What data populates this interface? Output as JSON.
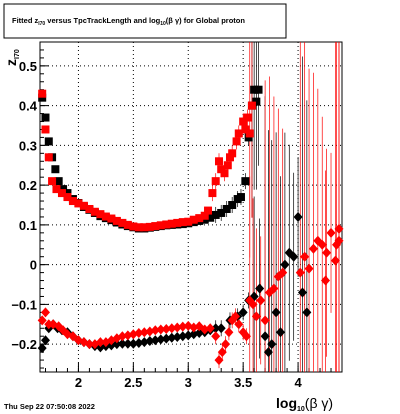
{
  "chart_data": {
    "type": "scatter",
    "title": {
      "prefix": "Fitted  z",
      "sub1": "I70",
      "middle": "  versus TpcTrackLength and log",
      "sub2": "10",
      "suffix": "(β  γ) for Global proton"
    },
    "ylabel": {
      "main": "z",
      "sub": "I70"
    },
    "xlabel": {
      "main": "log",
      "sub": "10",
      "suffix": "(β γ)"
    },
    "timestamp": "Thu Sep 22 07:50:08 2022",
    "xlim": [
      1.65,
      4.4
    ],
    "ylim": [
      -0.27,
      0.56
    ],
    "x_ticks": [
      2,
      2.5,
      3,
      3.5,
      4
    ],
    "x_tick_labels": [
      "2",
      "2.5",
      "3",
      "3.5",
      "4"
    ],
    "y_ticks": [
      -0.2,
      -0.1,
      0,
      0.1,
      0.2,
      0.3,
      0.4,
      0.5
    ],
    "y_tick_labels": [
      "−0.2",
      "−0.1",
      "0",
      "0.1",
      "0.2",
      "0.3",
      "0.4",
      "0.5"
    ],
    "grid": true,
    "colors": {
      "series_black": "#000000",
      "series_red": "#ff0000",
      "axis": "#000000"
    },
    "series": [
      {
        "color": "black",
        "marker": "square",
        "points": [
          [
            1.67,
            0.42
          ],
          [
            1.7,
            0.37
          ],
          [
            1.73,
            0.31
          ],
          [
            1.76,
            0.27
          ],
          [
            1.79,
            0.24
          ],
          [
            1.82,
            0.21
          ],
          [
            1.86,
            0.19
          ],
          [
            1.9,
            0.18
          ],
          [
            1.95,
            0.165
          ],
          [
            2.0,
            0.155
          ],
          [
            2.05,
            0.145
          ],
          [
            2.1,
            0.138
          ],
          [
            2.15,
            0.13
          ],
          [
            2.2,
            0.122
          ],
          [
            2.25,
            0.117
          ],
          [
            2.3,
            0.112
          ],
          [
            2.35,
            0.106
          ],
          [
            2.4,
            0.101
          ],
          [
            2.45,
            0.097
          ],
          [
            2.5,
            0.094
          ],
          [
            2.55,
            0.091
          ],
          [
            2.6,
            0.091
          ],
          [
            2.65,
            0.093
          ],
          [
            2.7,
            0.095
          ],
          [
            2.75,
            0.097
          ],
          [
            2.8,
            0.099
          ],
          [
            2.85,
            0.1
          ],
          [
            2.9,
            0.101
          ],
          [
            2.95,
            0.102
          ],
          [
            3.0,
            0.104
          ],
          [
            3.05,
            0.107
          ],
          [
            3.1,
            0.11
          ],
          [
            3.15,
            0.113
          ],
          [
            3.2,
            0.118
          ],
          [
            3.25,
            0.125
          ],
          [
            3.3,
            0.13
          ],
          [
            3.35,
            0.14
          ],
          [
            3.4,
            0.15
          ],
          [
            3.45,
            0.165
          ],
          [
            3.48,
            0.17
          ],
          [
            3.52,
            0.21
          ],
          [
            3.55,
            0.32
          ],
          [
            3.58,
            0.4
          ],
          [
            3.6,
            0.44
          ],
          [
            3.62,
            0.41
          ],
          [
            3.64,
            0.44
          ]
        ]
      },
      {
        "color": "red",
        "marker": "square",
        "points": [
          [
            1.67,
            0.43
          ],
          [
            1.7,
            0.34
          ],
          [
            1.73,
            0.27
          ],
          [
            1.76,
            0.21
          ],
          [
            1.8,
            0.19
          ],
          [
            1.85,
            0.18
          ],
          [
            1.9,
            0.17
          ],
          [
            1.95,
            0.16
          ],
          [
            2.0,
            0.154
          ],
          [
            2.05,
            0.148
          ],
          [
            2.1,
            0.14
          ],
          [
            2.15,
            0.133
          ],
          [
            2.2,
            0.127
          ],
          [
            2.25,
            0.121
          ],
          [
            2.3,
            0.116
          ],
          [
            2.35,
            0.11
          ],
          [
            2.4,
            0.105
          ],
          [
            2.45,
            0.1
          ],
          [
            2.5,
            0.096
          ],
          [
            2.55,
            0.094
          ],
          [
            2.6,
            0.094
          ],
          [
            2.65,
            0.095
          ],
          [
            2.7,
            0.097
          ],
          [
            2.75,
            0.099
          ],
          [
            2.8,
            0.101
          ],
          [
            2.85,
            0.103
          ],
          [
            2.9,
            0.105
          ],
          [
            2.95,
            0.107
          ],
          [
            3.0,
            0.108
          ],
          [
            3.05,
            0.113
          ],
          [
            3.1,
            0.117
          ],
          [
            3.15,
            0.123
          ],
          [
            3.18,
            0.136
          ],
          [
            3.22,
            0.18
          ],
          [
            3.25,
            0.21
          ],
          [
            3.28,
            0.26
          ],
          [
            3.3,
            0.24
          ],
          [
            3.33,
            0.23
          ],
          [
            3.36,
            0.25
          ],
          [
            3.38,
            0.27
          ],
          [
            3.4,
            0.28
          ],
          [
            3.44,
            0.31
          ],
          [
            3.46,
            0.33
          ],
          [
            3.5,
            0.36
          ],
          [
            3.52,
            0.34
          ],
          [
            3.54,
            0.37
          ],
          [
            3.56,
            0.33
          ],
          [
            3.58,
            0.4
          ]
        ]
      },
      {
        "color": "black",
        "marker": "diamond",
        "points": [
          [
            1.67,
            -0.21
          ],
          [
            1.7,
            -0.19
          ],
          [
            1.73,
            -0.16
          ],
          [
            1.77,
            -0.15
          ],
          [
            1.81,
            -0.16
          ],
          [
            1.85,
            -0.165
          ],
          [
            1.9,
            -0.17
          ],
          [
            1.95,
            -0.18
          ],
          [
            2.0,
            -0.19
          ],
          [
            2.05,
            -0.195
          ],
          [
            2.1,
            -0.2
          ],
          [
            2.15,
            -0.205
          ],
          [
            2.2,
            -0.208
          ],
          [
            2.25,
            -0.205
          ],
          [
            2.3,
            -0.203
          ],
          [
            2.35,
            -0.2
          ],
          [
            2.4,
            -0.199
          ],
          [
            2.45,
            -0.199
          ],
          [
            2.5,
            -0.199
          ],
          [
            2.55,
            -0.197
          ],
          [
            2.6,
            -0.195
          ],
          [
            2.65,
            -0.192
          ],
          [
            2.7,
            -0.19
          ],
          [
            2.75,
            -0.188
          ],
          [
            2.8,
            -0.186
          ],
          [
            2.85,
            -0.184
          ],
          [
            2.9,
            -0.182
          ],
          [
            2.95,
            -0.18
          ],
          [
            3.0,
            -0.178
          ],
          [
            3.05,
            -0.175
          ],
          [
            3.1,
            -0.172
          ],
          [
            3.15,
            -0.17
          ],
          [
            3.2,
            -0.165
          ],
          [
            3.25,
            -0.16
          ],
          [
            3.3,
            -0.16
          ],
          [
            3.38,
            -0.14
          ],
          [
            3.45,
            -0.13
          ],
          [
            3.5,
            -0.12
          ],
          [
            3.55,
            -0.09
          ],
          [
            3.6,
            -0.08
          ],
          [
            3.65,
            -0.06
          ],
          [
            3.7,
            -0.18
          ],
          [
            3.73,
            -0.22
          ],
          [
            3.76,
            -0.2
          ],
          [
            3.8,
            -0.12
          ],
          [
            3.84,
            -0.17
          ],
          [
            3.88,
            0.0
          ],
          [
            3.92,
            0.03
          ],
          [
            3.96,
            0.02
          ],
          [
            4.0,
            0.12
          ],
          [
            4.04,
            -0.07
          ],
          [
            4.08,
            -0.12
          ]
        ]
      },
      {
        "color": "red",
        "marker": "diamond",
        "points": [
          [
            1.67,
            -0.14
          ],
          [
            1.7,
            -0.12
          ],
          [
            1.73,
            -0.15
          ],
          [
            1.77,
            -0.15
          ],
          [
            1.82,
            -0.155
          ],
          [
            1.86,
            -0.165
          ],
          [
            1.9,
            -0.175
          ],
          [
            1.95,
            -0.18
          ],
          [
            2.0,
            -0.19
          ],
          [
            2.05,
            -0.195
          ],
          [
            2.1,
            -0.2
          ],
          [
            2.15,
            -0.2
          ],
          [
            2.2,
            -0.195
          ],
          [
            2.25,
            -0.195
          ],
          [
            2.3,
            -0.19
          ],
          [
            2.35,
            -0.185
          ],
          [
            2.4,
            -0.18
          ],
          [
            2.45,
            -0.178
          ],
          [
            2.5,
            -0.175
          ],
          [
            2.55,
            -0.172
          ],
          [
            2.6,
            -0.17
          ],
          [
            2.65,
            -0.168
          ],
          [
            2.7,
            -0.165
          ],
          [
            2.75,
            -0.163
          ],
          [
            2.8,
            -0.162
          ],
          [
            2.85,
            -0.16
          ],
          [
            2.9,
            -0.158
          ],
          [
            2.95,
            -0.156
          ],
          [
            3.0,
            -0.154
          ],
          [
            3.05,
            -0.158
          ],
          [
            3.1,
            -0.155
          ],
          [
            3.15,
            -0.163
          ],
          [
            3.2,
            -0.16
          ],
          [
            3.25,
            -0.18
          ],
          [
            3.28,
            -0.24
          ],
          [
            3.31,
            -0.22
          ],
          [
            3.34,
            -0.2
          ],
          [
            3.37,
            -0.17
          ],
          [
            3.4,
            -0.14
          ],
          [
            3.43,
            -0.13
          ],
          [
            3.46,
            -0.15
          ],
          [
            3.5,
            -0.17
          ],
          [
            3.53,
            -0.18
          ],
          [
            3.56,
            -0.09
          ],
          [
            3.59,
            -0.1
          ],
          [
            3.62,
            -0.13
          ],
          [
            3.66,
            -0.09
          ],
          [
            3.7,
            -0.14
          ],
          [
            3.74,
            -0.07
          ],
          [
            3.78,
            -0.06
          ],
          [
            3.82,
            -0.03
          ],
          [
            3.86,
            -0.02
          ],
          [
            4.02,
            -0.02
          ],
          [
            4.06,
            0.02
          ],
          [
            4.1,
            -0.01
          ],
          [
            4.14,
            0.04
          ],
          [
            4.18,
            0.06
          ],
          [
            4.22,
            0.05
          ],
          [
            4.26,
            0.03
          ],
          [
            4.3,
            0.08
          ],
          [
            4.34,
            0.01
          ],
          [
            4.38,
            0.06
          ],
          [
            4.42,
            0.09
          ],
          [
            4.25,
            -0.04
          ],
          [
            4.35,
            0.05
          ]
        ]
      }
    ]
  }
}
